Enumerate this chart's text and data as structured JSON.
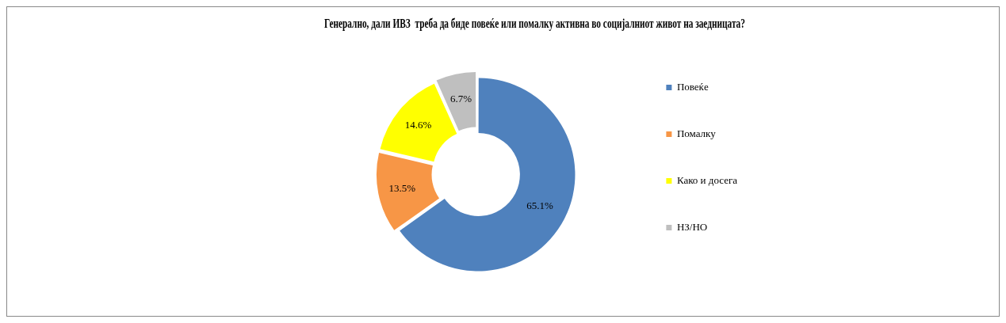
{
  "chart_data": {
    "type": "donut",
    "title": "Генерално, дали ИВЗ  треба да биде повеќе или помалку активна во социјалниот живот на заедницата?",
    "categories": [
      "Повеќе",
      "Помалку",
      "Како и досега",
      "НЗ/НО"
    ],
    "values": [
      65.1,
      13.5,
      14.6,
      6.7
    ],
    "colors": [
      "#4f81bd",
      "#f79646",
      "#ffff00",
      "#bfbfbf"
    ],
    "value_labels": [
      "65.1%",
      "13.5%",
      "14.6%",
      "6.7%"
    ],
    "legend": "right"
  }
}
